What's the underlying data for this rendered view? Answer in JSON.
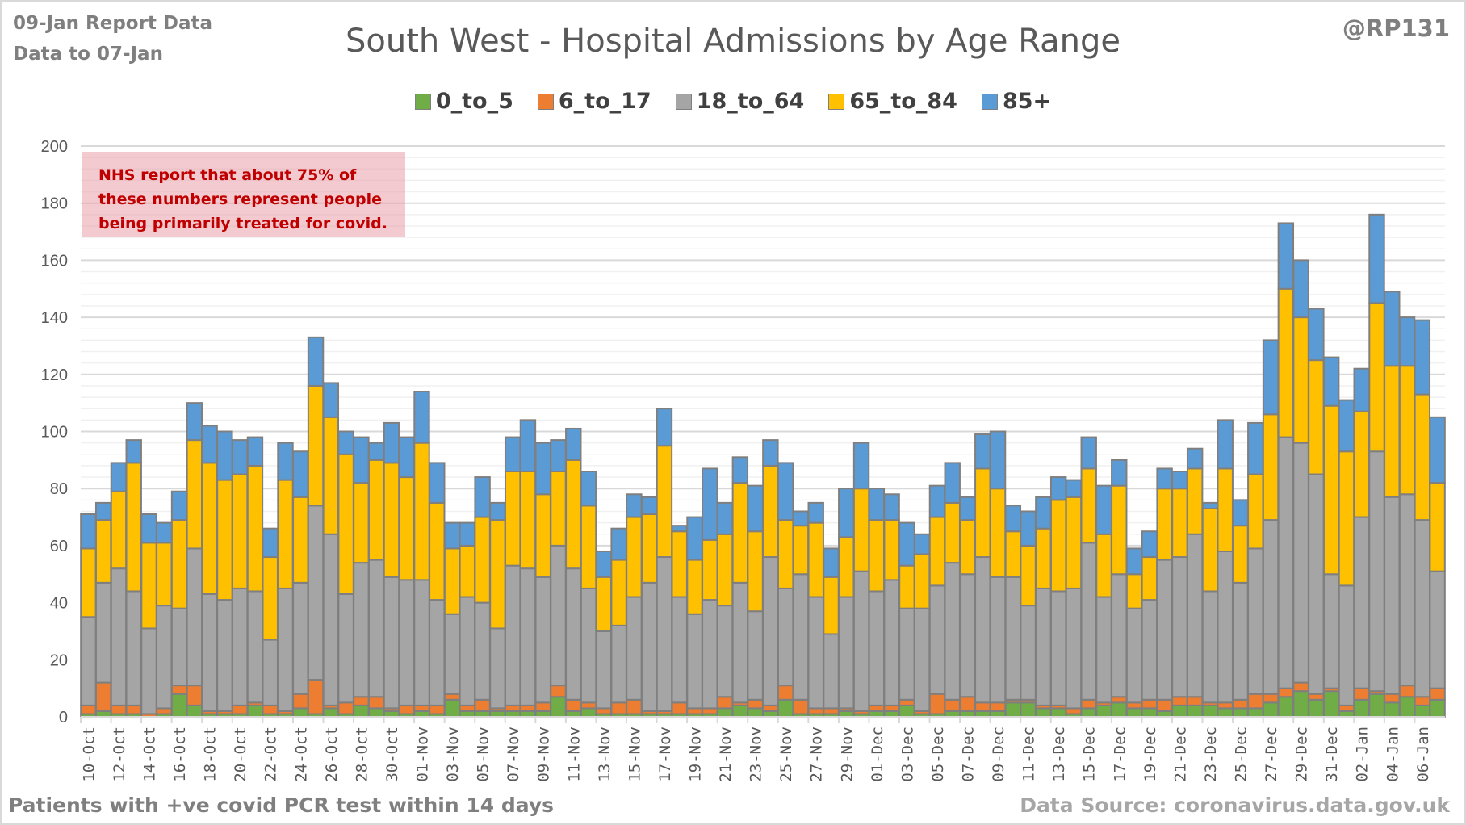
{
  "header": {
    "report_date": "09-Jan Report Data",
    "data_to": "Data to 07-Jan",
    "handle": "@RP131"
  },
  "footer": {
    "left": "Patients with  +ve covid PCR test within 14 days",
    "right": "Data Source: coronavirus.data.gov.uk"
  },
  "annotation": "NHS report that about 75% of these numbers represent people being primarily treated for covid.",
  "chart_data": {
    "type": "bar",
    "stacked": true,
    "title": "South West - Hospital Admissions by Age Range",
    "xlabel": "",
    "ylabel": "",
    "ylim": [
      0,
      200
    ],
    "yticks": [
      0,
      20,
      40,
      60,
      80,
      100,
      120,
      140,
      160,
      180,
      200
    ],
    "grid": true,
    "legend_position": "top",
    "categories": [
      "10-Oct",
      "11-Oct",
      "12-Oct",
      "13-Oct",
      "14-Oct",
      "15-Oct",
      "16-Oct",
      "17-Oct",
      "18-Oct",
      "19-Oct",
      "20-Oct",
      "21-Oct",
      "22-Oct",
      "23-Oct",
      "24-Oct",
      "25-Oct",
      "26-Oct",
      "27-Oct",
      "28-Oct",
      "29-Oct",
      "30-Oct",
      "31-Oct",
      "01-Nov",
      "02-Nov",
      "03-Nov",
      "04-Nov",
      "05-Nov",
      "06-Nov",
      "07-Nov",
      "08-Nov",
      "09-Nov",
      "10-Nov",
      "11-Nov",
      "12-Nov",
      "13-Nov",
      "14-Nov",
      "15-Nov",
      "16-Nov",
      "17-Nov",
      "18-Nov",
      "19-Nov",
      "20-Nov",
      "21-Nov",
      "22-Nov",
      "23-Nov",
      "24-Nov",
      "25-Nov",
      "26-Nov",
      "27-Nov",
      "28-Nov",
      "29-Nov",
      "30-Nov",
      "01-Dec",
      "02-Dec",
      "03-Dec",
      "04-Dec",
      "05-Dec",
      "06-Dec",
      "07-Dec",
      "08-Dec",
      "09-Dec",
      "10-Dec",
      "11-Dec",
      "12-Dec",
      "13-Dec",
      "14-Dec",
      "15-Dec",
      "16-Dec",
      "17-Dec",
      "18-Dec",
      "19-Dec",
      "20-Dec",
      "21-Dec",
      "22-Dec",
      "23-Dec",
      "24-Dec",
      "25-Dec",
      "26-Dec",
      "27-Dec",
      "28-Dec",
      "29-Dec",
      "30-Dec",
      "31-Dec",
      "01-Jan",
      "02-Jan",
      "03-Jan",
      "04-Jan",
      "05-Jan",
      "06-Jan",
      "07-Jan"
    ],
    "tick_labels_every": 2,
    "series": [
      {
        "name": "0_to_5",
        "color": "#70ad47",
        "values": [
          1,
          2,
          1,
          1,
          0,
          1,
          8,
          4,
          1,
          1,
          1,
          4,
          1,
          1,
          3,
          1,
          3,
          1,
          4,
          3,
          2,
          1,
          2,
          1,
          6,
          2,
          2,
          2,
          2,
          2,
          2,
          7,
          2,
          3,
          1,
          1,
          1,
          1,
          1,
          1,
          1,
          1,
          3,
          4,
          3,
          2,
          6,
          1,
          1,
          1,
          2,
          1,
          2,
          2,
          4,
          1,
          1,
          2,
          2,
          2,
          2,
          5,
          5,
          3,
          3,
          1,
          3,
          4,
          5,
          3,
          3,
          2,
          4,
          4,
          4,
          3,
          3,
          3,
          5,
          7,
          9,
          6,
          9,
          2,
          6,
          8,
          5,
          7,
          4,
          6
        ]
      },
      {
        "name": "6_to_17",
        "color": "#ed7d31",
        "values": [
          3,
          10,
          3,
          3,
          1,
          2,
          3,
          7,
          1,
          1,
          3,
          1,
          3,
          1,
          5,
          12,
          1,
          4,
          3,
          4,
          1,
          3,
          2,
          3,
          2,
          2,
          4,
          1,
          2,
          2,
          3,
          4,
          4,
          2,
          2,
          4,
          5,
          1,
          1,
          4,
          2,
          2,
          4,
          1,
          3,
          2,
          5,
          5,
          2,
          2,
          1,
          1,
          2,
          2,
          2,
          1,
          7,
          4,
          5,
          3,
          3,
          1,
          1,
          1,
          1,
          2,
          3,
          1,
          2,
          2,
          3,
          4,
          3,
          3,
          1,
          2,
          3,
          5,
          3,
          3,
          3,
          2,
          1,
          2,
          4,
          1,
          3,
          4,
          3,
          4
        ]
      },
      {
        "name": "18_to_64",
        "color": "#a5a5a5",
        "values": [
          31,
          35,
          48,
          40,
          30,
          36,
          27,
          48,
          41,
          39,
          41,
          39,
          23,
          43,
          39,
          61,
          60,
          38,
          47,
          48,
          46,
          44,
          44,
          37,
          28,
          38,
          34,
          28,
          49,
          48,
          44,
          49,
          46,
          40,
          27,
          27,
          36,
          45,
          54,
          37,
          33,
          38,
          32,
          42,
          31,
          52,
          34,
          44,
          39,
          26,
          39,
          49,
          40,
          44,
          32,
          36,
          38,
          48,
          43,
          51,
          44,
          43,
          33,
          41,
          40,
          42,
          55,
          37,
          43,
          33,
          35,
          49,
          49,
          57,
          39,
          53,
          41,
          51,
          61,
          88,
          84,
          77,
          40,
          42,
          60,
          84,
          69,
          67,
          62,
          41
        ]
      },
      {
        "name": "65_to_84",
        "color": "#ffc000",
        "values": [
          24,
          22,
          27,
          45,
          30,
          22,
          31,
          38,
          46,
          42,
          40,
          44,
          29,
          38,
          30,
          42,
          41,
          49,
          28,
          35,
          40,
          36,
          48,
          34,
          23,
          18,
          30,
          38,
          33,
          34,
          29,
          26,
          38,
          29,
          19,
          23,
          28,
          24,
          39,
          23,
          19,
          21,
          25,
          35,
          28,
          32,
          24,
          17,
          26,
          20,
          21,
          29,
          25,
          21,
          15,
          19,
          24,
          21,
          19,
          31,
          31,
          16,
          21,
          21,
          32,
          32,
          26,
          22,
          31,
          12,
          15,
          25,
          24,
          23,
          29,
          29,
          20,
          26,
          37,
          52,
          44,
          40,
          59,
          47,
          37,
          52,
          46,
          45,
          44,
          31
        ]
      },
      {
        "name": "85+",
        "color": "#5b9bd5",
        "values": [
          12,
          6,
          10,
          8,
          10,
          7,
          10,
          13,
          13,
          17,
          12,
          10,
          10,
          13,
          16,
          17,
          12,
          8,
          16,
          6,
          14,
          14,
          18,
          14,
          9,
          8,
          14,
          6,
          12,
          18,
          18,
          11,
          11,
          12,
          9,
          11,
          8,
          6,
          13,
          2,
          15,
          25,
          11,
          9,
          16,
          9,
          20,
          5,
          7,
          10,
          17,
          16,
          11,
          9,
          15,
          7,
          11,
          14,
          8,
          12,
          20,
          9,
          12,
          11,
          8,
          6,
          11,
          17,
          9,
          9,
          9,
          7,
          6,
          7,
          2,
          17,
          9,
          18,
          26,
          23,
          20,
          18,
          17,
          18,
          15,
          31,
          26,
          17,
          26,
          23
        ]
      }
    ]
  }
}
